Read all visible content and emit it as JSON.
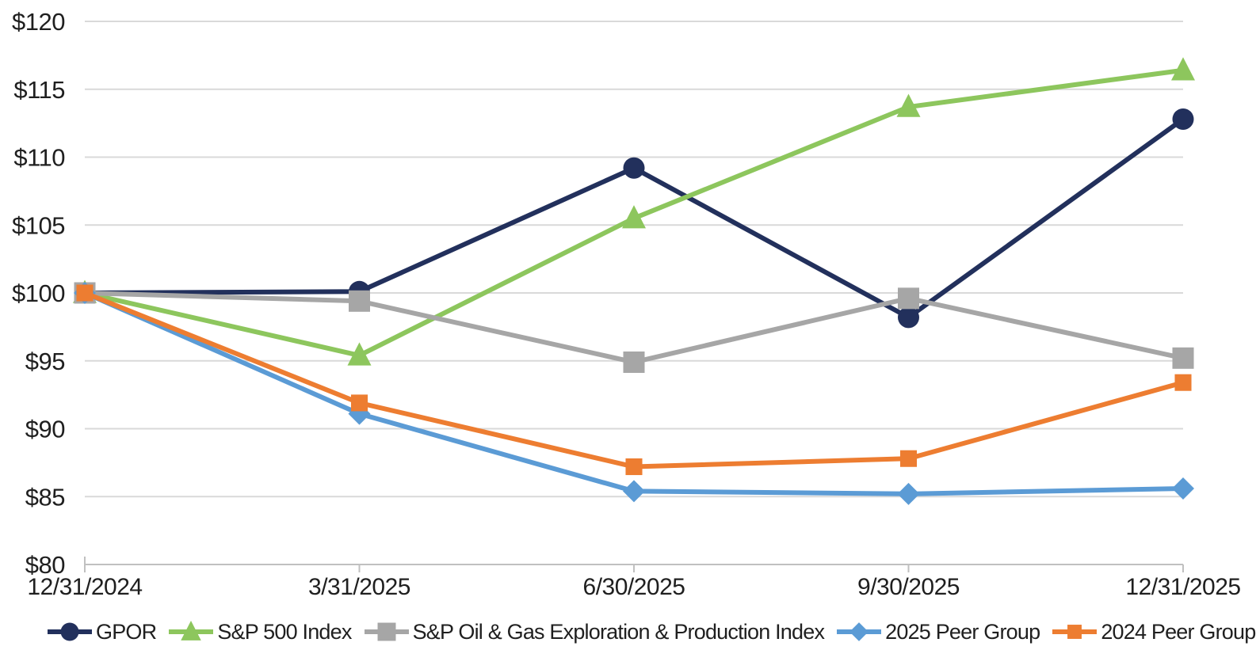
{
  "chart_data": {
    "type": "line",
    "title": "",
    "xlabel": "",
    "ylabel": "",
    "x_categories": [
      "12/31/2024",
      "3/31/2025",
      "6/30/2025",
      "9/30/2025",
      "12/31/2025"
    ],
    "y_axis": {
      "min": 80,
      "max": 120,
      "step": 5,
      "prefix": "$",
      "tick_labels": [
        "$80",
        "$85",
        "$90",
        "$95",
        "$100",
        "$105",
        "$110",
        "$115",
        "$120"
      ]
    },
    "grid": true,
    "legend_position": "bottom",
    "series": [
      {
        "name": "GPOR",
        "color": "#22305c",
        "marker": "circle",
        "values": [
          100,
          100.1,
          109.2,
          98.2,
          112.8
        ]
      },
      {
        "name": "S&P 500 Index",
        "color": "#8dc65d",
        "marker": "triangle",
        "values": [
          100,
          95.4,
          105.5,
          113.7,
          116.4
        ]
      },
      {
        "name": "S&P Oil & Gas Exploration & Production Index",
        "color": "#a6a6a6",
        "marker": "square-large",
        "values": [
          100,
          99.4,
          94.9,
          99.6,
          95.2
        ]
      },
      {
        "name": "2025 Peer Group",
        "color": "#5b9bd5",
        "marker": "diamond",
        "values": [
          100,
          91.1,
          85.4,
          85.2,
          85.6
        ]
      },
      {
        "name": "2024 Peer Group",
        "color": "#ed7d31",
        "marker": "square-small",
        "values": [
          100,
          91.9,
          87.2,
          87.8,
          93.4
        ]
      }
    ],
    "colors": {
      "background": "#ffffff",
      "gridline": "#d9d9d9",
      "axis_line": "#c0c0c0",
      "label_text": "#1f1f1f"
    }
  }
}
